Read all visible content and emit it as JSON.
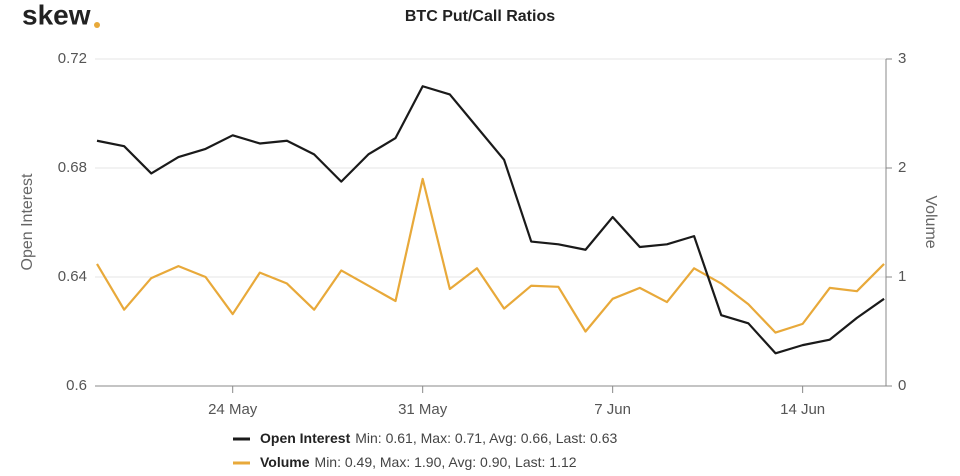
{
  "brand": "skew",
  "chart_data": {
    "type": "line",
    "title": "BTC Put/Call Ratios",
    "categories": [
      null,
      null,
      null,
      null,
      null,
      "24 May",
      null,
      null,
      null,
      null,
      null,
      null,
      "31 May",
      null,
      null,
      null,
      null,
      null,
      null,
      "7 Jun",
      null,
      null,
      null,
      null,
      null,
      null,
      "14 Jun",
      null,
      null,
      null
    ],
    "ylabel": "Open Interest",
    "y2label": "Volume",
    "ylim": [
      0.6,
      0.72
    ],
    "yticks": [
      0.6,
      0.64,
      0.68,
      0.72
    ],
    "y2lim": [
      0,
      3
    ],
    "y2ticks": [
      0,
      1,
      2,
      3
    ],
    "grid": true,
    "series": [
      {
        "name": "Open Interest",
        "color": "#1a1a1a",
        "stats": "Min: 0.61, Max: 0.71, Avg: 0.66, Last: 0.63",
        "values": [
          0.69,
          0.688,
          0.678,
          0.684,
          0.687,
          0.692,
          0.689,
          0.69,
          0.685,
          0.675,
          0.685,
          0.691,
          0.71,
          0.707,
          0.695,
          0.683,
          0.653,
          0.652,
          0.65,
          0.662,
          0.651,
          0.652,
          0.655,
          0.626,
          0.623,
          0.612,
          0.615,
          0.617,
          0.625,
          0.632
        ]
      },
      {
        "name": "Volume",
        "color": "#e8a93a",
        "axis": "y2",
        "stats": "Min: 0.49, Max: 1.90, Avg: 0.90, Last: 1.12",
        "values": [
          1.12,
          0.7,
          0.99,
          1.1,
          1.0,
          0.66,
          1.04,
          0.94,
          0.7,
          1.06,
          0.92,
          0.78,
          1.9,
          0.89,
          1.08,
          0.71,
          0.92,
          0.91,
          0.5,
          0.8,
          0.9,
          0.77,
          1.08,
          0.94,
          0.75,
          0.49,
          0.57,
          0.9,
          0.87,
          1.12
        ]
      }
    ]
  }
}
